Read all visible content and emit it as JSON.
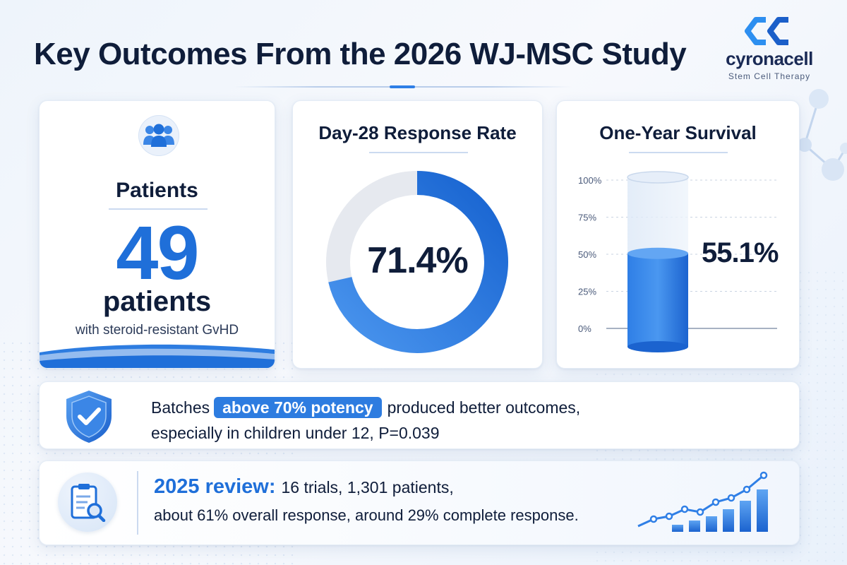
{
  "header": {
    "title": "Key Outcomes From the 2026 WJ-MSC Study"
  },
  "brand": {
    "name": "cyronacell",
    "tagline": "Stem Cell Therapy"
  },
  "patients_card": {
    "label": "Patients",
    "count": "49",
    "unit": "patients",
    "description": "with steroid-resistant GvHD",
    "icon": "users-icon"
  },
  "response_card": {
    "title": "Day-28 Response Rate",
    "value_text": "71.4%",
    "value": 71.4
  },
  "survival_card": {
    "title": "One-Year Survival",
    "value_text": "55.1%",
    "value": 55.1,
    "ticks": [
      "100%",
      "75%",
      "50%",
      "25%",
      "0%"
    ]
  },
  "potency_card": {
    "text_before": "Batches",
    "highlight": "above  70% potency",
    "text_after": "produced better outcomes,",
    "line2": "especially in children under 12, P=0.039",
    "icon": "shield-check-icon"
  },
  "review_card": {
    "title": "2025 review:",
    "line1": "16 trials, 1,301 patients,",
    "line2": "about 61% overall response, around 29% complete response.",
    "icon": "clipboard-search-icon"
  },
  "colors": {
    "accent": "#1f6fd9",
    "highlight_bg": "#2d7ce0",
    "text": "#0f1d3a",
    "track": "#e6e9ef"
  }
}
